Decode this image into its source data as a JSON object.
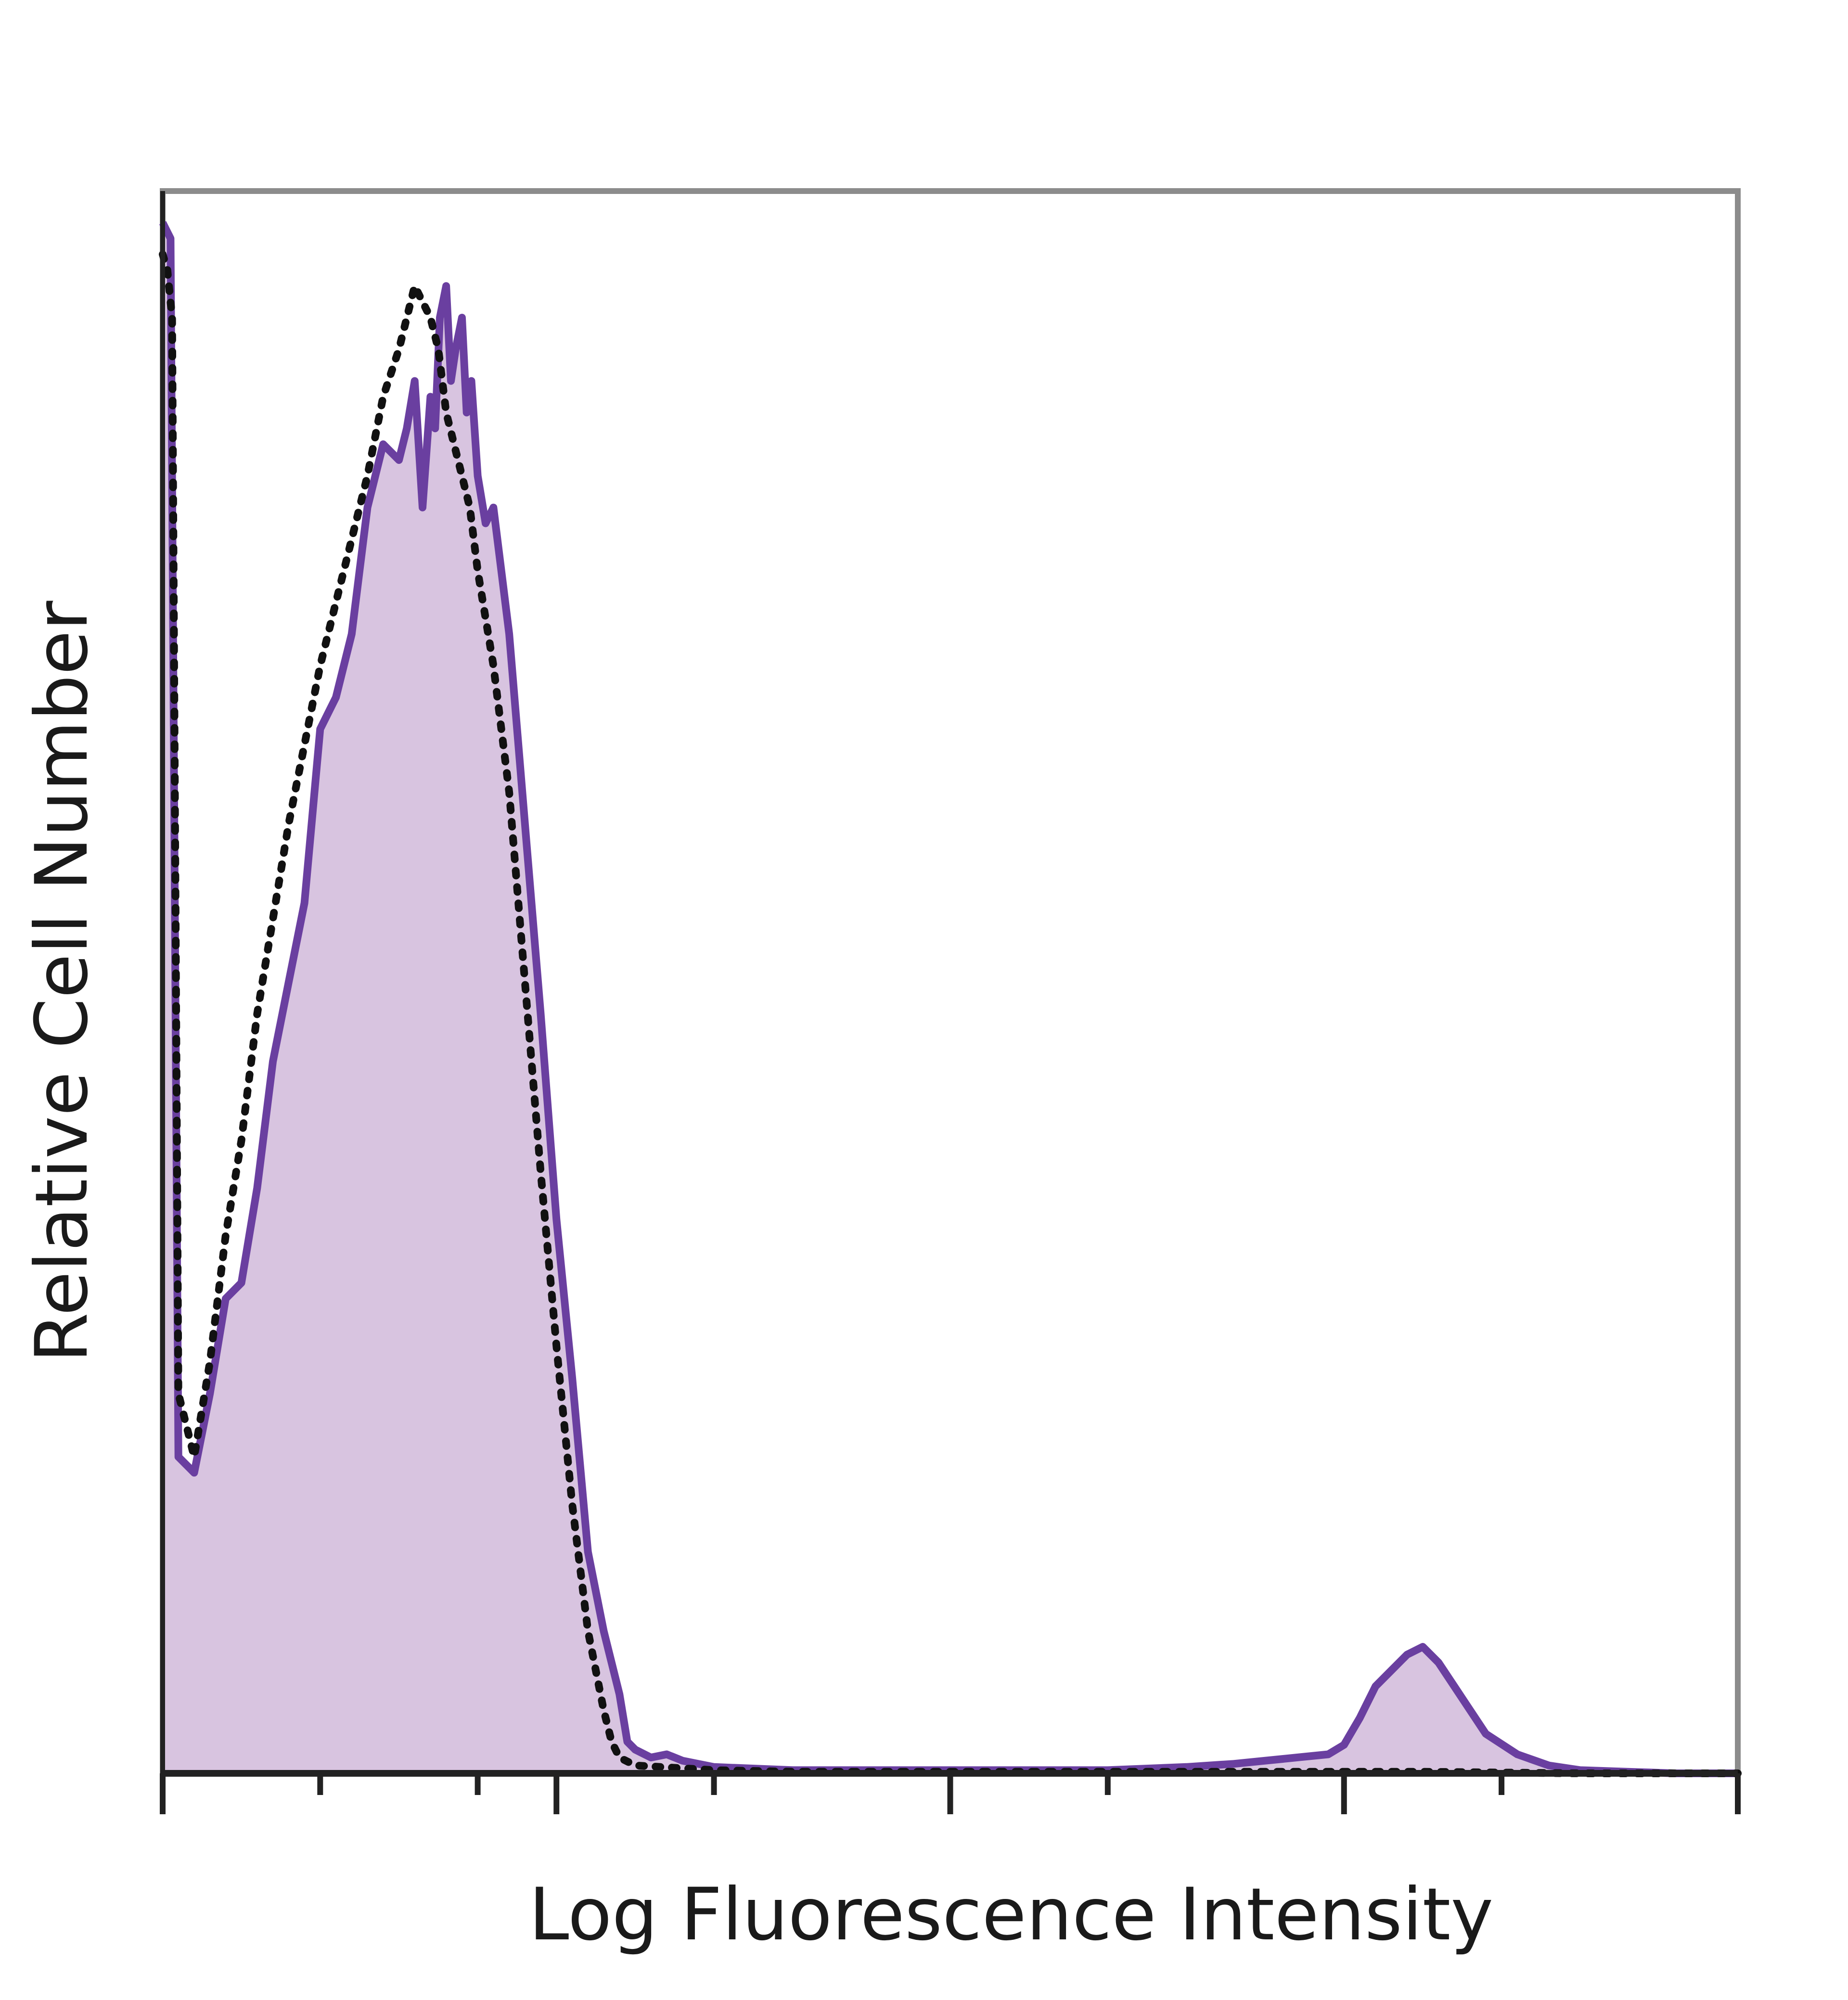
{
  "chart_data": {
    "type": "area",
    "title": "",
    "xlabel": "Log Fluorescence Intensity",
    "ylabel": "Relative Cell Number",
    "x_scale": "log",
    "xlim": [
      0,
      100
    ],
    "ylim": [
      0,
      100
    ],
    "x_ticks": [
      0,
      10,
      20,
      25,
      35,
      50,
      60,
      75,
      85,
      100
    ],
    "x_tick_labels_shown": false,
    "y_ticks_shown": false,
    "grid": false,
    "legend": false,
    "colors": {
      "frame": "#8c8c8c",
      "axis": "#222222",
      "filled_series_line": "#6a3fa0",
      "filled_series_fill": "#d8c4e0",
      "dotted_series_line": "#111111"
    },
    "series": [
      {
        "style": "solid-filled",
        "x": [
          0.0,
          0.5,
          1.0,
          2.0,
          3.0,
          4.0,
          5.0,
          6.0,
          7.0,
          8.0,
          9.0,
          10.0,
          11.0,
          12.0,
          12.5,
          13.0,
          14.0,
          15.0,
          15.5,
          16.0,
          16.5,
          17.0,
          17.3,
          17.6,
          18.0,
          18.3,
          18.6,
          19.0,
          19.3,
          19.6,
          20.0,
          20.5,
          21.0,
          22.0,
          23.0,
          24.0,
          25.0,
          26.0,
          27.0,
          28.0,
          29.0,
          29.5,
          30.0,
          31.0,
          32.0,
          33.0,
          35.0,
          40.0,
          45.0,
          50.0,
          55.0,
          60.0,
          65.0,
          68.0,
          70.0,
          72.0,
          74.0,
          75.0,
          76.0,
          77.0,
          78.0,
          79.0,
          80.0,
          81.0,
          82.0,
          83.0,
          84.0,
          86.0,
          88.0,
          90.0,
          93.0,
          96.0,
          100.0
        ],
        "y": [
          98,
          97,
          20,
          19,
          24,
          30,
          31,
          37,
          45,
          50,
          55,
          66,
          68,
          72,
          76,
          80,
          84,
          83,
          85,
          88,
          80,
          87,
          85,
          92,
          94,
          88,
          90,
          92,
          86,
          88,
          82,
          79,
          80,
          72,
          60,
          48,
          35,
          25,
          14,
          9,
          5,
          2,
          1.5,
          1,
          1.2,
          0.8,
          0.4,
          0.2,
          0.2,
          0.2,
          0.2,
          0.2,
          0.4,
          0.6,
          0.8,
          1,
          1.2,
          1.8,
          3.5,
          5.5,
          6.5,
          7.5,
          8,
          7,
          5.5,
          4,
          2.5,
          1.2,
          0.5,
          0.2,
          0.1,
          0,
          0
        ]
      },
      {
        "style": "dotted",
        "x": [
          0.0,
          0.3,
          0.6,
          1.0,
          2.0,
          3.0,
          4.0,
          5.0,
          6.0,
          7.0,
          8.0,
          9.0,
          10.0,
          11.0,
          12.0,
          13.0,
          14.0,
          15.0,
          16.0,
          16.5,
          17.0,
          17.5,
          18.0,
          18.5,
          19.0,
          19.5,
          20.0,
          20.5,
          21.0,
          22.0,
          23.0,
          24.0,
          25.0,
          26.0,
          27.0,
          28.0,
          28.5,
          29.0,
          30.0,
          35.0,
          40.0,
          50.0,
          60.0,
          70.0,
          80.0,
          90.0,
          100.0
        ],
        "y": [
          96,
          95,
          92,
          24,
          20,
          26,
          34,
          40,
          48,
          54,
          60,
          65,
          70,
          74,
          78,
          82,
          87,
          90,
          94,
          93,
          92,
          90,
          86,
          84,
          82,
          80,
          76,
          73,
          70,
          62,
          50,
          38,
          27,
          17,
          9,
          4,
          2,
          1,
          0.5,
          0.2,
          0.1,
          0.1,
          0.1,
          0.1,
          0.1,
          0,
          0
        ]
      }
    ]
  }
}
